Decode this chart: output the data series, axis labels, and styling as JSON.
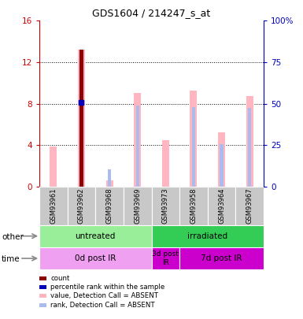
{
  "title": "GDS1604 / 214247_s_at",
  "samples": [
    "GSM93961",
    "GSM93962",
    "GSM93968",
    "GSM93969",
    "GSM93973",
    "GSM93958",
    "GSM93964",
    "GSM93967"
  ],
  "pink_values": [
    3.9,
    13.2,
    0.6,
    9.0,
    4.5,
    9.3,
    5.2,
    8.7
  ],
  "light_blue_values": [
    0.0,
    0.0,
    1.7,
    7.8,
    0.0,
    7.7,
    4.1,
    7.6
  ],
  "dark_red_value": 13.2,
  "dark_red_index": 1,
  "blue_dot_value": 8.1,
  "blue_dot_index": 1,
  "ylim_left": [
    0,
    16
  ],
  "ylim_right": [
    0,
    100
  ],
  "yticks_left": [
    0,
    4,
    8,
    12,
    16
  ],
  "yticks_right": [
    0,
    25,
    50,
    75,
    100
  ],
  "ytick_labels_right": [
    "0",
    "25",
    "50",
    "75",
    "100%"
  ],
  "group_other": [
    {
      "label": "untreated",
      "start": 0,
      "end": 4,
      "color": "#99EE99"
    },
    {
      "label": "irradiated",
      "start": 4,
      "end": 8,
      "color": "#33CC55"
    }
  ],
  "group_time": [
    {
      "label": "0d post IR",
      "start": 0,
      "end": 4,
      "color": "#F0A0F0"
    },
    {
      "label": "3d post\nIR",
      "start": 4,
      "end": 5,
      "color": "#CC00CC"
    },
    {
      "label": "7d post IR",
      "start": 5,
      "end": 8,
      "color": "#CC00CC"
    }
  ],
  "legend_items": [
    {
      "color": "#8B0000",
      "label": "count"
    },
    {
      "color": "#0000BB",
      "label": "percentile rank within the sample"
    },
    {
      "color": "#FFB6C1",
      "label": "value, Detection Call = ABSENT"
    },
    {
      "color": "#AABBEE",
      "label": "rank, Detection Call = ABSENT"
    }
  ],
  "pink_color": "#FFB6C1",
  "light_blue_color": "#AABBEE",
  "dark_red_color": "#8B0000",
  "blue_dot_color": "#0000BB",
  "axis_left_color": "#CC0000",
  "axis_right_color": "#0000BB",
  "sample_bg_color": "#C8C8C8",
  "bar_width": 0.25,
  "blue_bar_width": 0.12
}
